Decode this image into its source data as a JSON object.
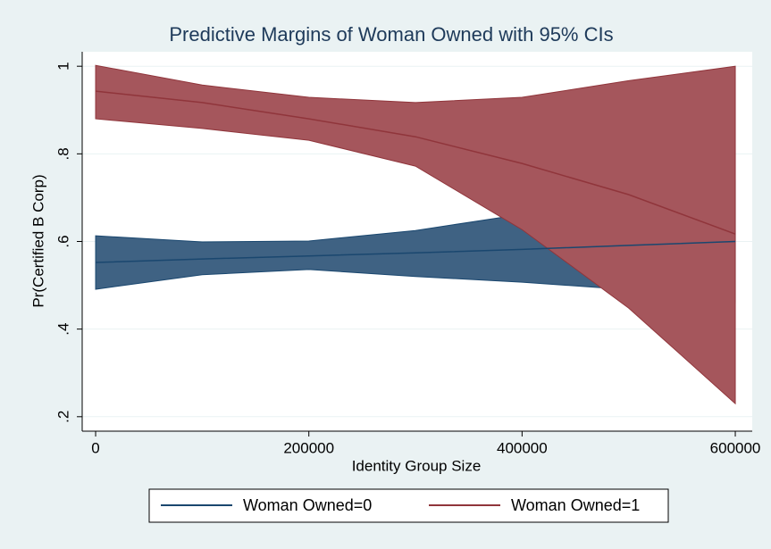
{
  "chart_data": {
    "type": "line_ci",
    "title": "Predictive Margins of Woman Owned with 95% CIs",
    "x_label": "Identity Group Size",
    "y_label": "Pr(Certified B Corp)",
    "x": [
      0,
      100000,
      200000,
      300000,
      400000,
      500000,
      600000
    ],
    "series": [
      {
        "name": "Woman Owned=0",
        "color": "#1a476f",
        "band_color": "#3f6283",
        "values": [
          0.552,
          0.56,
          0.567,
          0.574,
          0.582,
          0.591,
          0.6
        ],
        "lower": [
          0.491,
          0.524,
          0.536,
          0.52,
          0.507,
          0.49,
          0.46
        ],
        "upper": [
          0.613,
          0.599,
          0.601,
          0.625,
          0.662,
          0.7,
          0.74
        ]
      },
      {
        "name": "Woman Owned=1",
        "color": "#90353b",
        "band_color": "#a5565c",
        "values": [
          0.943,
          0.917,
          0.88,
          0.839,
          0.778,
          0.707,
          0.617
        ],
        "lower": [
          0.88,
          0.858,
          0.831,
          0.772,
          0.627,
          0.448,
          0.23
        ],
        "upper": [
          1.002,
          0.957,
          0.929,
          0.917,
          0.929,
          0.967,
          1.0
        ]
      }
    ],
    "xlim": [
      -12600,
      615900
    ],
    "ylim": [
      0.167,
      1.033
    ],
    "xticks": [
      0,
      200000,
      400000,
      600000
    ],
    "yticks": [
      {
        "value": 0.2,
        "label": ".2"
      },
      {
        "value": 0.4,
        "label": ".4"
      },
      {
        "value": 0.6,
        "label": ".6"
      },
      {
        "value": 0.8,
        "label": ".8"
      },
      1
    ],
    "grid": true,
    "legend_position": "bottom"
  }
}
